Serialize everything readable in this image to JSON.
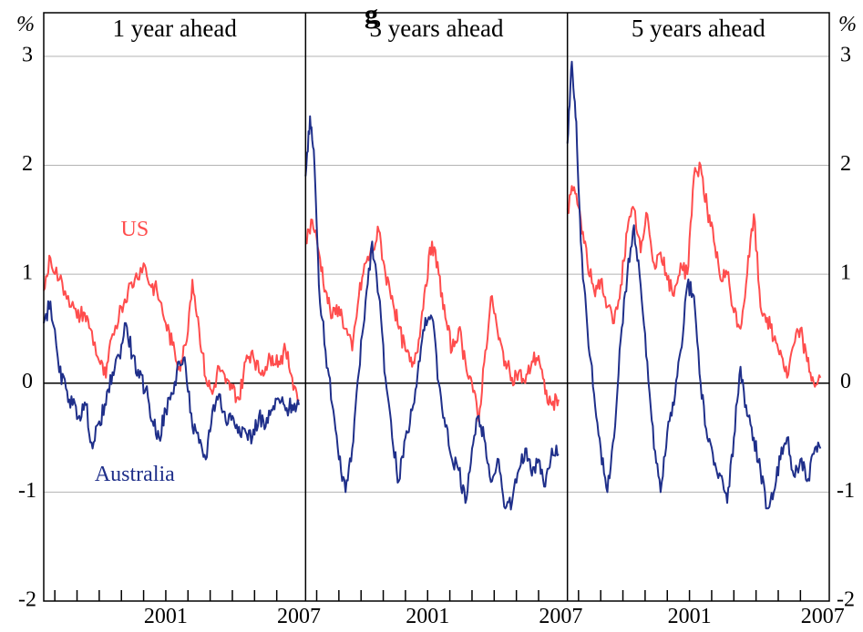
{
  "page": {
    "title_fragment": "g"
  },
  "chart_data": {
    "type": "line",
    "y_unit_left": "%",
    "y_unit_right": "%",
    "ylim": [
      -2,
      3.4
    ],
    "y_ticks": [
      3,
      2,
      1,
      0,
      -1,
      -2
    ],
    "y_tick_labels": [
      "3",
      "2",
      "1",
      "0",
      "-1",
      "-2"
    ],
    "grid": true,
    "colors": {
      "US": "#ff4d4d",
      "Australia": "#1f2f8a"
    },
    "panels": [
      {
        "title": "1 year ahead",
        "xlim": [
          1995.5,
          2007.3
        ],
        "x_tick_labels": [
          {
            "x": 2001,
            "label": "2001"
          },
          {
            "x": 2007,
            "label": "2007"
          }
        ],
        "series_labels": [
          {
            "series": "US",
            "text": "US",
            "x": 1999.6,
            "y": 1.4
          },
          {
            "series": "Australia",
            "text": "Australia",
            "x": 1999.6,
            "y": -0.85
          }
        ],
        "series": [
          {
            "name": "US",
            "x": [
              1995.5,
              1995.8,
              1996.2,
              1996.6,
              1997.0,
              1997.3,
              1997.6,
              1998.0,
              1998.3,
              1998.6,
              1999.0,
              1999.3,
              1999.6,
              2000.0,
              2000.3,
              2000.6,
              2001.0,
              2001.3,
              2001.6,
              2001.9,
              2002.2,
              2002.5,
              2002.8,
              2003.1,
              2003.4,
              2003.7,
              2004.0,
              2004.3,
              2004.6,
              2004.9,
              2005.2,
              2005.5,
              2005.8,
              2006.1,
              2006.4,
              2006.7,
              2007.0
            ],
            "y": [
              0.85,
              1.15,
              0.95,
              0.8,
              0.6,
              0.65,
              0.5,
              0.2,
              0.05,
              0.45,
              0.7,
              0.85,
              0.95,
              1.1,
              0.9,
              0.85,
              0.55,
              0.35,
              0.15,
              0.35,
              0.95,
              0.5,
              0.05,
              -0.1,
              0.15,
              0.0,
              -0.05,
              -0.15,
              0.2,
              0.3,
              0.1,
              0.15,
              0.25,
              0.2,
              0.3,
              0.05,
              -0.15
            ]
          },
          {
            "name": "Australia",
            "x": [
              1995.5,
              1995.8,
              1996.2,
              1996.5,
              1996.8,
              1997.1,
              1997.4,
              1997.7,
              1998.0,
              1998.3,
              1998.6,
              1998.9,
              1999.2,
              1999.5,
              1999.8,
              2000.1,
              2000.4,
              2000.7,
              2001.0,
              2001.3,
              2001.6,
              2001.9,
              2002.2,
              2002.5,
              2002.8,
              2003.1,
              2003.4,
              2003.7,
              2004.0,
              2004.3,
              2004.6,
              2004.9,
              2005.2,
              2005.5,
              2005.8,
              2006.1,
              2006.4,
              2006.7,
              2007.0
            ],
            "y": [
              0.55,
              0.75,
              0.1,
              -0.05,
              -0.2,
              -0.3,
              -0.2,
              -0.6,
              -0.35,
              -0.2,
              0.1,
              0.25,
              0.55,
              0.25,
              0.05,
              -0.05,
              -0.35,
              -0.5,
              -0.25,
              -0.1,
              0.2,
              0.15,
              -0.4,
              -0.55,
              -0.7,
              -0.25,
              -0.1,
              -0.35,
              -0.3,
              -0.4,
              -0.45,
              -0.5,
              -0.3,
              -0.4,
              -0.25,
              -0.15,
              -0.25,
              -0.2,
              -0.2
            ]
          }
        ]
      },
      {
        "title": "3 years ahead",
        "xlim": [
          1995.5,
          2007.3
        ],
        "x_tick_labels": [
          {
            "x": 2001,
            "label": "2001"
          },
          {
            "x": 2007,
            "label": "2007"
          }
        ],
        "series_labels": [],
        "series": [
          {
            "name": "US",
            "x": [
              1995.5,
              1995.8,
              1996.1,
              1996.4,
              1996.7,
              1997.0,
              1997.3,
              1997.6,
              1997.9,
              1998.2,
              1998.5,
              1998.8,
              1999.1,
              1999.4,
              1999.7,
              2000.0,
              2000.3,
              2000.6,
              2000.9,
              2001.2,
              2001.5,
              2001.8,
              2002.1,
              2002.4,
              2002.7,
              2003.0,
              2003.3,
              2003.6,
              2003.9,
              2004.2,
              2004.5,
              2004.8,
              2005.1,
              2005.4,
              2005.7,
              2006.0,
              2006.3,
              2006.6,
              2006.9
            ],
            "y": [
              1.3,
              1.5,
              1.2,
              0.85,
              0.6,
              0.7,
              0.5,
              0.3,
              0.8,
              1.1,
              1.2,
              1.4,
              1.0,
              0.8,
              0.5,
              0.3,
              0.15,
              0.4,
              0.9,
              1.3,
              1.0,
              0.6,
              0.3,
              0.5,
              0.2,
              0.0,
              -0.35,
              0.3,
              0.8,
              0.4,
              0.2,
              0.05,
              0.1,
              0.0,
              0.2,
              0.25,
              -0.1,
              -0.2,
              -0.15
            ]
          },
          {
            "name": "Australia",
            "x": [
              1995.5,
              1995.7,
              1995.9,
              1996.1,
              1996.4,
              1996.7,
              1997.0,
              1997.3,
              1997.6,
              1997.9,
              1998.2,
              1998.5,
              1998.8,
              1999.1,
              1999.4,
              1999.7,
              2000.0,
              2000.3,
              2000.6,
              2000.9,
              2001.2,
              2001.5,
              2001.8,
              2002.1,
              2002.4,
              2002.7,
              2003.0,
              2003.3,
              2003.6,
              2003.9,
              2004.2,
              2004.5,
              2004.8,
              2005.1,
              2005.4,
              2005.7,
              2006.0,
              2006.3,
              2006.6,
              2006.9
            ],
            "y": [
              1.9,
              2.45,
              2.0,
              0.9,
              0.3,
              -0.2,
              -0.7,
              -1.0,
              -0.6,
              0.1,
              0.75,
              1.3,
              0.8,
              0.05,
              -0.5,
              -0.9,
              -0.5,
              -0.25,
              0.2,
              0.6,
              0.6,
              0.0,
              -0.4,
              -0.7,
              -0.8,
              -1.1,
              -0.6,
              -0.3,
              -0.55,
              -0.9,
              -0.7,
              -1.15,
              -1.1,
              -0.8,
              -0.6,
              -0.85,
              -0.7,
              -0.95,
              -0.6,
              -0.65
            ]
          }
        ]
      },
      {
        "title": "5 years ahead",
        "xlim": [
          1995.5,
          2007.3
        ],
        "x_tick_labels": [
          {
            "x": 2001,
            "label": "2001"
          },
          {
            "x": 2007,
            "label": "2007"
          }
        ],
        "series_labels": [],
        "series": [
          {
            "name": "US",
            "x": [
              1995.5,
              1995.8,
              1996.1,
              1996.4,
              1996.7,
              1997.0,
              1997.3,
              1997.6,
              1997.9,
              1998.2,
              1998.5,
              1998.8,
              1999.1,
              1999.4,
              1999.7,
              2000.0,
              2000.3,
              2000.6,
              2000.9,
              2001.2,
              2001.5,
              2001.8,
              2002.1,
              2002.4,
              2002.7,
              2003.0,
              2003.3,
              2003.6,
              2003.9,
              2004.2,
              2004.5,
              2004.8,
              2005.1,
              2005.4,
              2005.7,
              2006.0,
              2006.3,
              2006.6,
              2006.9
            ],
            "y": [
              1.6,
              1.8,
              1.5,
              1.1,
              0.85,
              0.95,
              0.7,
              0.55,
              0.9,
              1.4,
              1.6,
              1.2,
              1.55,
              1.1,
              1.2,
              0.95,
              0.8,
              1.1,
              1.0,
              1.9,
              2.0,
              1.6,
              1.3,
              0.95,
              1.0,
              0.65,
              0.5,
              1.0,
              1.55,
              0.7,
              0.6,
              0.4,
              0.3,
              0.05,
              0.35,
              0.5,
              0.2,
              0.0,
              0.05
            ]
          },
          {
            "name": "Australia",
            "x": [
              1995.5,
              1995.7,
              1995.9,
              1996.1,
              1996.4,
              1996.7,
              1997.0,
              1997.3,
              1997.6,
              1997.9,
              1998.2,
              1998.5,
              1998.8,
              1999.1,
              1999.4,
              1999.7,
              2000.0,
              2000.3,
              2000.6,
              2000.9,
              2001.2,
              2001.5,
              2001.8,
              2002.1,
              2002.4,
              2002.7,
              2003.0,
              2003.3,
              2003.6,
              2003.9,
              2004.2,
              2004.5,
              2004.8,
              2005.1,
              2005.4,
              2005.7,
              2006.0,
              2006.3,
              2006.6,
              2006.9
            ],
            "y": [
              2.2,
              2.95,
              2.4,
              1.3,
              0.5,
              -0.1,
              -0.6,
              -1.0,
              -0.5,
              0.4,
              1.0,
              1.45,
              0.9,
              0.2,
              -0.6,
              -1.0,
              -0.45,
              -0.2,
              0.3,
              0.9,
              0.8,
              0.0,
              -0.5,
              -0.75,
              -0.85,
              -1.1,
              -0.5,
              0.15,
              -0.3,
              -0.5,
              -0.8,
              -1.15,
              -1.0,
              -0.7,
              -0.5,
              -0.85,
              -0.7,
              -0.9,
              -0.65,
              -0.6
            ]
          }
        ]
      }
    ]
  }
}
